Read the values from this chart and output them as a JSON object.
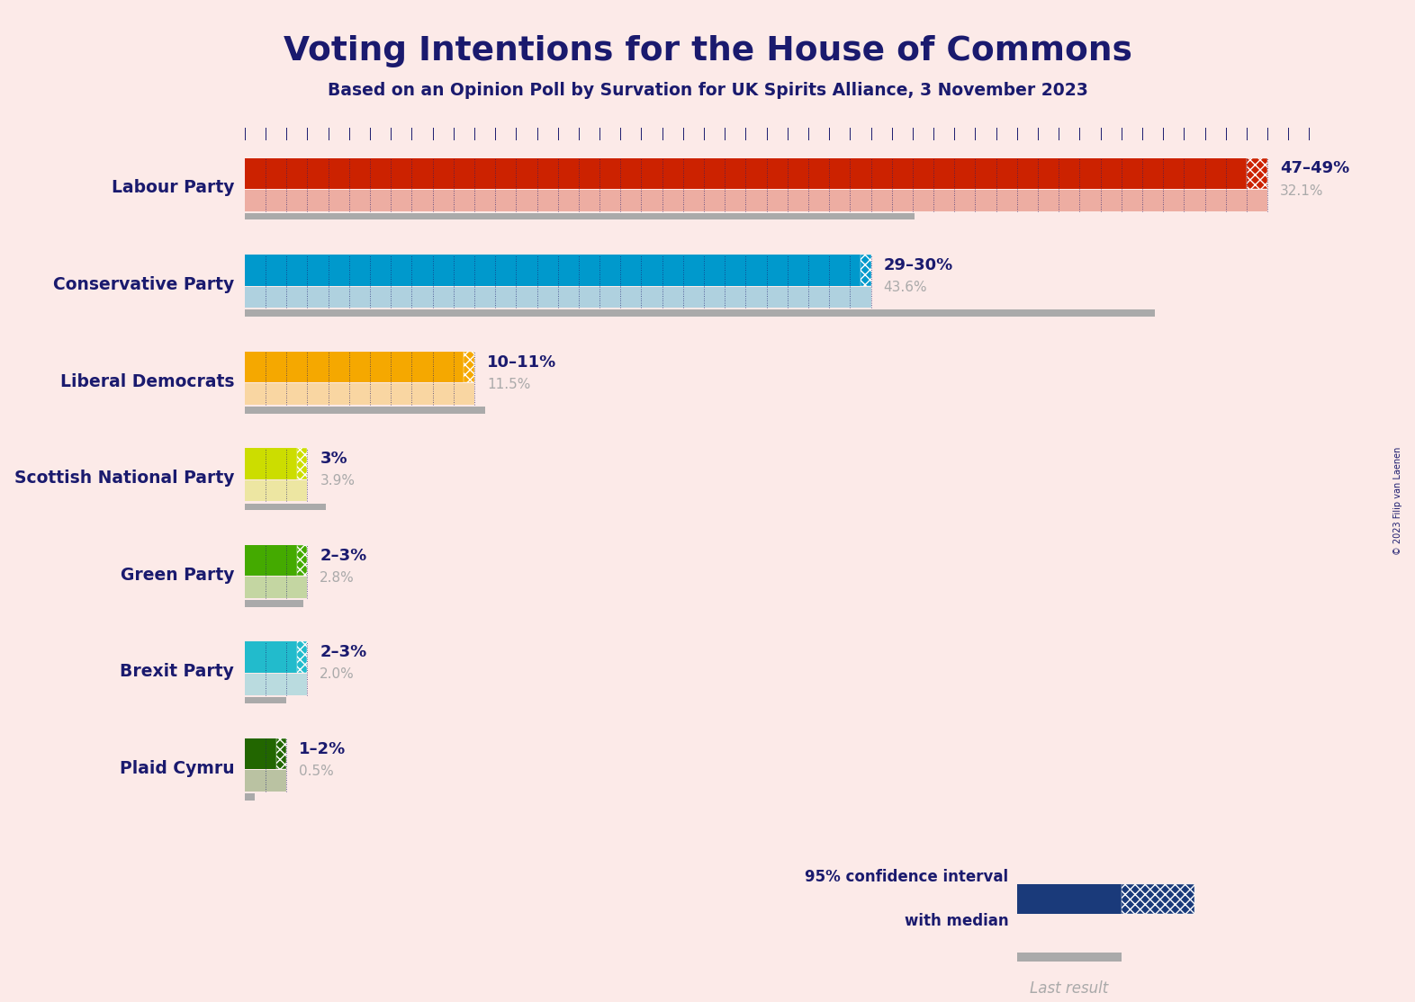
{
  "title": "Voting Intentions for the House of Commons",
  "subtitle": "Based on an Opinion Poll by Survation for UK Spirits Alliance, 3 November 2023",
  "copyright": "© 2023 Filip van Laenen",
  "background_color": "#FCEAE8",
  "title_color": "#1a1a6e",
  "parties": [
    {
      "name": "Labour Party",
      "median": 48,
      "ci_low": 47,
      "ci_high": 49,
      "last_result": 32.1,
      "color": "#CC2200",
      "label_range": "47–49%",
      "label_last": "32.1%"
    },
    {
      "name": "Conservative Party",
      "median": 29.5,
      "ci_low": 29,
      "ci_high": 30,
      "last_result": 43.6,
      "color": "#0099CC",
      "label_range": "29–30%",
      "label_last": "43.6%"
    },
    {
      "name": "Liberal Democrats",
      "median": 10.5,
      "ci_low": 10,
      "ci_high": 11,
      "last_result": 11.5,
      "color": "#F5A800",
      "label_range": "10–11%",
      "label_last": "11.5%"
    },
    {
      "name": "Scottish National Party",
      "median": 3,
      "ci_low": 3,
      "ci_high": 3,
      "last_result": 3.9,
      "color": "#CCDD00",
      "label_range": "3%",
      "label_last": "3.9%"
    },
    {
      "name": "Green Party",
      "median": 2.5,
      "ci_low": 2,
      "ci_high": 3,
      "last_result": 2.8,
      "color": "#44AA00",
      "label_range": "2–3%",
      "label_last": "2.8%"
    },
    {
      "name": "Brexit Party",
      "median": 2.5,
      "ci_low": 2,
      "ci_high": 3,
      "last_result": 2.0,
      "color": "#22BBCC",
      "label_range": "2–3%",
      "label_last": "2.0%"
    },
    {
      "name": "Plaid Cymru",
      "median": 1.5,
      "ci_low": 1,
      "ci_high": 2,
      "last_result": 0.5,
      "color": "#226600",
      "label_range": "1–2%",
      "label_last": "0.5%"
    }
  ],
  "xmax": 52,
  "dot_color": "#1a1a6e",
  "last_result_color": "#AAAAAA",
  "legend_navy": "#1a3a7a"
}
